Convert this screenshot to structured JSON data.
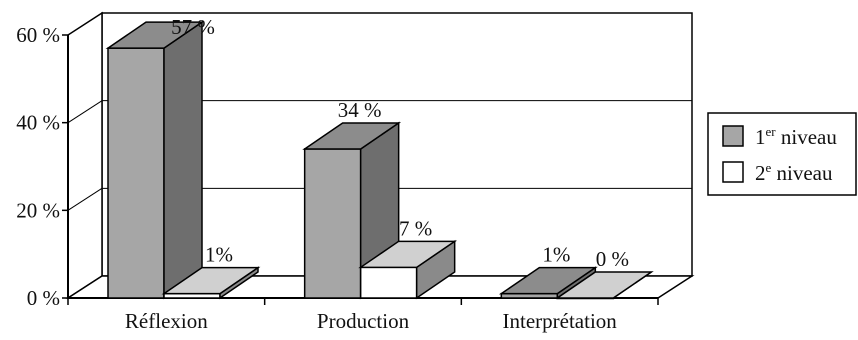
{
  "chart_data": {
    "type": "bar",
    "categories": [
      "Réflexion",
      "Production",
      "Interprétation"
    ],
    "series": [
      {
        "name": "1er niveau",
        "values": [
          57,
          34,
          1
        ],
        "labels": [
          "57 %",
          "34 %",
          "1%"
        ],
        "color": "#a6a6a6"
      },
      {
        "name": "2e niveau",
        "values": [
          1,
          7,
          0
        ],
        "labels": [
          "1%",
          "7 %",
          "0 %"
        ],
        "color": "#ffffff"
      }
    ],
    "ylim": [
      0,
      60
    ],
    "yticks": [
      "0 %",
      "20 %",
      "40 %",
      "60 %"
    ],
    "grid": true,
    "legend": "right",
    "legend_items": [
      {
        "main": "1",
        "sup": "er",
        "rest": " niveau"
      },
      {
        "main": "2",
        "sup": "e",
        "rest": " niveau"
      }
    ]
  }
}
